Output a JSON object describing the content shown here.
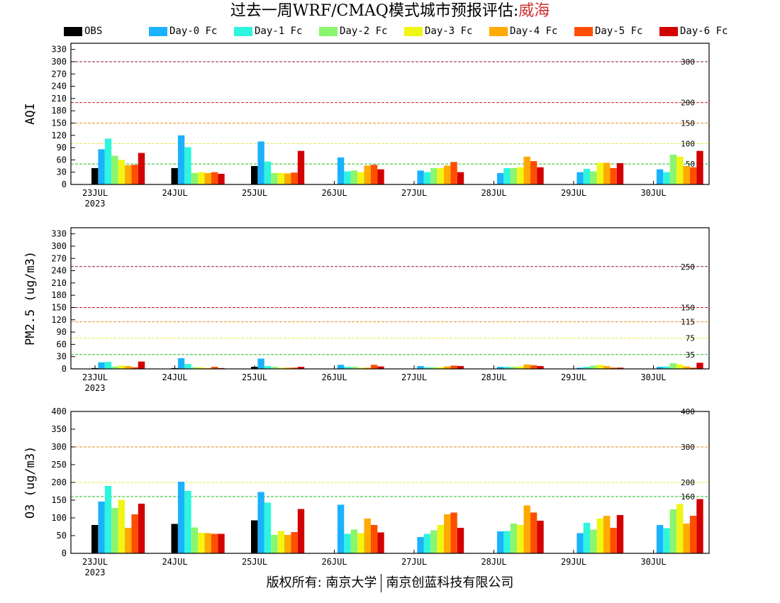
{
  "title": {
    "main": "过去一周WRF/CMAQ模式城市预报评估:",
    "city": "威海"
  },
  "legend": [
    {
      "label": "OBS",
      "color": "#000000"
    },
    {
      "label": "Day-0 Fc",
      "color": "#1ab2ff"
    },
    {
      "label": "Day-1 Fc",
      "color": "#2ef5dc"
    },
    {
      "label": "Day-2 Fc",
      "color": "#8af56e"
    },
    {
      "label": "Day-3 Fc",
      "color": "#f0f514"
    },
    {
      "label": "Day-4 Fc",
      "color": "#ffaa00"
    },
    {
      "label": "Day-5 Fc",
      "color": "#ff4e00"
    },
    {
      "label": "Day-6 Fc",
      "color": "#d20000"
    }
  ],
  "footer": {
    "left": "版权所有: 南京大学",
    "right": "南京创蓝科技有限公司"
  },
  "chart_data": [
    {
      "type": "bar",
      "ylabel": "AQI",
      "categories": [
        "23JUL",
        "24JUL",
        "25JUL",
        "26JUL",
        "27JUL",
        "28JUL",
        "29JUL",
        "30JUL"
      ],
      "first_date_year": "2023",
      "ylim": [
        0,
        345
      ],
      "yticks": [
        0,
        30,
        60,
        90,
        120,
        150,
        180,
        210,
        240,
        270,
        300,
        330
      ],
      "thresholds": [
        {
          "value": 50,
          "label": "50",
          "color": "#22bb22"
        },
        {
          "value": 100,
          "label": "100",
          "color": "#e8e840"
        },
        {
          "value": 150,
          "label": "150",
          "color": "#e59020"
        },
        {
          "value": 200,
          "label": "200",
          "color": "#cc2222"
        },
        {
          "value": 300,
          "label": "300",
          "color": "#8b1a4a"
        }
      ],
      "series": [
        {
          "name": "OBS",
          "values": [
            40,
            40,
            45,
            null,
            null,
            null,
            null,
            null
          ]
        },
        {
          "name": "Day-0 Fc",
          "values": [
            86,
            120,
            105,
            66,
            34,
            28,
            30,
            37
          ]
        },
        {
          "name": "Day-1 Fc",
          "values": [
            112,
            91,
            56,
            32,
            30,
            40,
            38,
            30
          ]
        },
        {
          "name": "Day-2 Fc",
          "values": [
            70,
            28,
            28,
            34,
            40,
            40,
            32,
            73
          ]
        },
        {
          "name": "Day-3 Fc",
          "values": [
            60,
            30,
            28,
            30,
            40,
            42,
            53,
            68
          ]
        },
        {
          "name": "Day-4 Fc",
          "values": [
            47,
            28,
            27,
            46,
            46,
            68,
            53,
            45
          ]
        },
        {
          "name": "Day-5 Fc",
          "values": [
            48,
            30,
            29,
            48,
            55,
            57,
            40,
            42
          ]
        },
        {
          "name": "Day-6 Fc",
          "values": [
            77,
            26,
            82,
            37,
            30,
            42,
            52,
            82
          ]
        }
      ]
    },
    {
      "type": "bar",
      "ylabel": "PM2.5 (ug/m3)",
      "categories": [
        "23JUL",
        "24JUL",
        "25JUL",
        "26JUL",
        "27JUL",
        "28JUL",
        "29JUL",
        "30JUL"
      ],
      "first_date_year": "2023",
      "ylim": [
        0,
        345
      ],
      "yticks": [
        0,
        30,
        60,
        90,
        120,
        150,
        180,
        210,
        240,
        270,
        300,
        330
      ],
      "thresholds": [
        {
          "value": 35,
          "label": "35",
          "color": "#22bb22"
        },
        {
          "value": 75,
          "label": "75",
          "color": "#e8e840"
        },
        {
          "value": 115,
          "label": "115",
          "color": "#e59020"
        },
        {
          "value": 150,
          "label": "150",
          "color": "#cc2222"
        },
        {
          "value": 250,
          "label": "250",
          "color": "#8b1a4a"
        }
      ],
      "series": [
        {
          "name": "OBS",
          "values": [
            2,
            2,
            5,
            null,
            null,
            null,
            null,
            null
          ]
        },
        {
          "name": "Day-0 Fc",
          "values": [
            16,
            26,
            25,
            10,
            7,
            5,
            3,
            5
          ]
        },
        {
          "name": "Day-1 Fc",
          "values": [
            17,
            12,
            7,
            5,
            4,
            5,
            5,
            6
          ]
        },
        {
          "name": "Day-2 Fc",
          "values": [
            6,
            4,
            5,
            5,
            4,
            5,
            8,
            14
          ]
        },
        {
          "name": "Day-3 Fc",
          "values": [
            8,
            4,
            3,
            3,
            4,
            6,
            10,
            11
          ]
        },
        {
          "name": "Day-4 Fc",
          "values": [
            7,
            2,
            3,
            3,
            6,
            11,
            7,
            6
          ]
        },
        {
          "name": "Day-5 Fc",
          "values": [
            4,
            5,
            3,
            10,
            8,
            9,
            3,
            3
          ]
        },
        {
          "name": "Day-6 Fc",
          "values": [
            18,
            2,
            5,
            6,
            7,
            7,
            3,
            15
          ]
        }
      ]
    },
    {
      "type": "bar",
      "ylabel": "O3 (ug/m3)",
      "categories": [
        "23JUL",
        "24JUL",
        "25JUL",
        "26JUL",
        "27JUL",
        "28JUL",
        "29JUL",
        "30JUL"
      ],
      "first_date_year": "2023",
      "ylim": [
        0,
        400
      ],
      "yticks": [
        0,
        50,
        100,
        150,
        200,
        250,
        300,
        350,
        400
      ],
      "thresholds": [
        {
          "value": 160,
          "label": "160",
          "color": "#22bb22"
        },
        {
          "value": 200,
          "label": "200",
          "color": "#e8e840"
        },
        {
          "value": 300,
          "label": "300",
          "color": "#e59020"
        },
        {
          "value": 400,
          "label": "400",
          "color": "#cc2222"
        }
      ],
      "series": [
        {
          "name": "OBS",
          "values": [
            80,
            83,
            93,
            null,
            null,
            null,
            null,
            null
          ]
        },
        {
          "name": "Day-0 Fc",
          "values": [
            146,
            202,
            173,
            137,
            46,
            62,
            57,
            80
          ]
        },
        {
          "name": "Day-1 Fc",
          "values": [
            190,
            176,
            143,
            55,
            55,
            63,
            86,
            71
          ]
        },
        {
          "name": "Day-2 Fc",
          "values": [
            128,
            73,
            52,
            67,
            65,
            84,
            67,
            124
          ]
        },
        {
          "name": "Day-3 Fc",
          "values": [
            151,
            58,
            63,
            57,
            80,
            80,
            98,
            139
          ]
        },
        {
          "name": "Day-4 Fc",
          "values": [
            72,
            57,
            52,
            98,
            110,
            135,
            106,
            84
          ]
        },
        {
          "name": "Day-5 Fc",
          "values": [
            110,
            55,
            60,
            80,
            115,
            115,
            72,
            106
          ]
        },
        {
          "name": "Day-6 Fc",
          "values": [
            140,
            55,
            125,
            59,
            72,
            92,
            108,
            153
          ]
        }
      ]
    }
  ]
}
